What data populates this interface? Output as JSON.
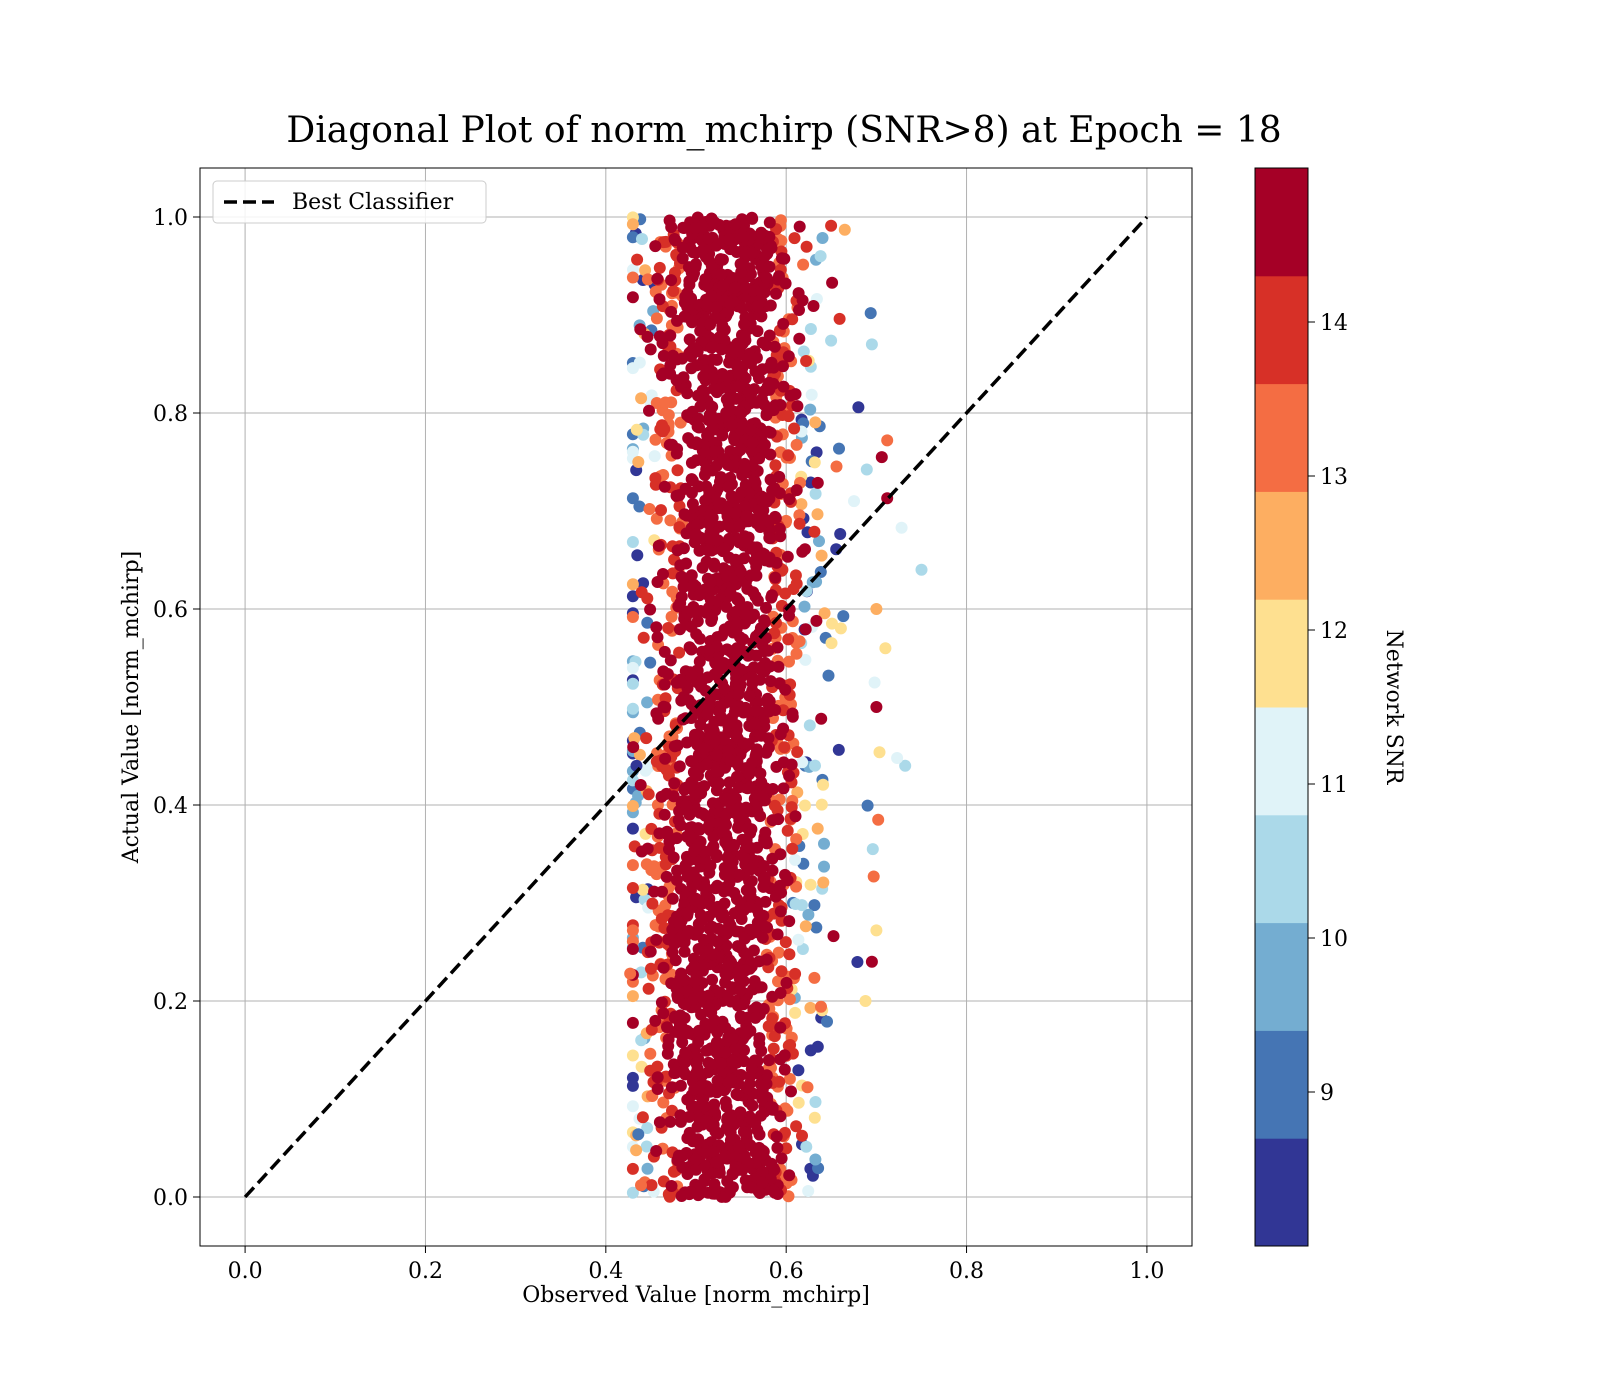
{
  "chart_data": {
    "type": "scatter",
    "title": "Diagonal Plot of norm_mchirp (SNR>8) at Epoch = 18",
    "xlabel": "Observed Value [norm_mchirp]",
    "ylabel": "Actual Value [norm_mchirp]",
    "xlim": [
      -0.05,
      1.05
    ],
    "ylim": [
      -0.05,
      1.05
    ],
    "xticks": [
      "0.0",
      "0.2",
      "0.4",
      "0.6",
      "0.8",
      "1.0"
    ],
    "yticks": [
      "0.0",
      "0.2",
      "0.4",
      "0.6",
      "0.8",
      "1.0"
    ],
    "grid": true,
    "legend": {
      "position": "top-left",
      "entries": [
        "Best Classifier"
      ]
    },
    "reference_line": {
      "name": "Best Classifier",
      "style": "dashed",
      "color": "#000000",
      "x": [
        0.0,
        1.0
      ],
      "y": [
        0.0,
        1.0
      ]
    },
    "colorbar": {
      "label": "Network SNR",
      "ticks": [
        "9",
        "10",
        "11",
        "12",
        "13",
        "14"
      ],
      "range": [
        8.0,
        15.0
      ],
      "colors": [
        "#313695",
        "#4575b4",
        "#74add1",
        "#abd9e9",
        "#e0f3f8",
        "#fee090",
        "#fdae61",
        "#f46d43",
        "#d73027",
        "#a50026"
      ]
    },
    "scatter_summary": {
      "x_center_vs_y": [
        [
          0.0,
          0.535
        ],
        [
          0.2,
          0.525
        ],
        [
          0.4,
          0.53
        ],
        [
          0.6,
          0.535
        ],
        [
          0.8,
          0.535
        ],
        [
          1.0,
          0.535
        ]
      ],
      "x_spread_core": 0.05,
      "x_min": 0.43,
      "x_max": 0.75,
      "y_min": 0.0,
      "y_max": 1.0,
      "dominant_snr": 15,
      "outliers": [
        {
          "x": 0.75,
          "y": 0.64,
          "snr": 10.5
        },
        {
          "x": 0.728,
          "y": 0.683,
          "snr": 11.2
        },
        {
          "x": 0.712,
          "y": 0.713,
          "snr": 14.8
        },
        {
          "x": 0.732,
          "y": 0.44,
          "snr": 10.5
        },
        {
          "x": 0.723,
          "y": 0.448,
          "snr": 10.8
        },
        {
          "x": 0.436,
          "y": 0.75,
          "snr": 12.5
        },
        {
          "x": 0.434,
          "y": 0.44,
          "snr": 8.2
        },
        {
          "x": 0.436,
          "y": 0.064,
          "snr": 9.2
        },
        {
          "x": 0.43,
          "y": 0.272,
          "snr": 13.2
        },
        {
          "x": 0.427,
          "y": 0.228,
          "snr": 13.1
        },
        {
          "x": 0.439,
          "y": 0.012,
          "snr": 13.2
        },
        {
          "x": 0.665,
          "y": 0.987,
          "snr": 12.8
        },
        {
          "x": 0.7,
          "y": 0.6,
          "snr": 12.6
        },
        {
          "x": 0.71,
          "y": 0.56,
          "snr": 12.0
        },
        {
          "x": 0.712,
          "y": 0.772,
          "snr": 13.5
        },
        {
          "x": 0.706,
          "y": 0.755,
          "snr": 14.8
        },
        {
          "x": 0.7,
          "y": 0.5,
          "snr": 14.9
        },
        {
          "x": 0.695,
          "y": 0.24,
          "snr": 14.8
        },
        {
          "x": 0.7,
          "y": 0.272,
          "snr": 12.0
        },
        {
          "x": 0.697,
          "y": 0.327,
          "snr": 13.4
        },
        {
          "x": 0.702,
          "y": 0.385,
          "snr": 13.5
        },
        {
          "x": 0.695,
          "y": 0.87,
          "snr": 10.6
        },
        {
          "x": 0.698,
          "y": 0.525,
          "snr": 10.8
        },
        {
          "x": 0.696,
          "y": 0.355,
          "snr": 10.6
        },
        {
          "x": 0.688,
          "y": 0.2,
          "snr": 12.0
        }
      ]
    }
  }
}
